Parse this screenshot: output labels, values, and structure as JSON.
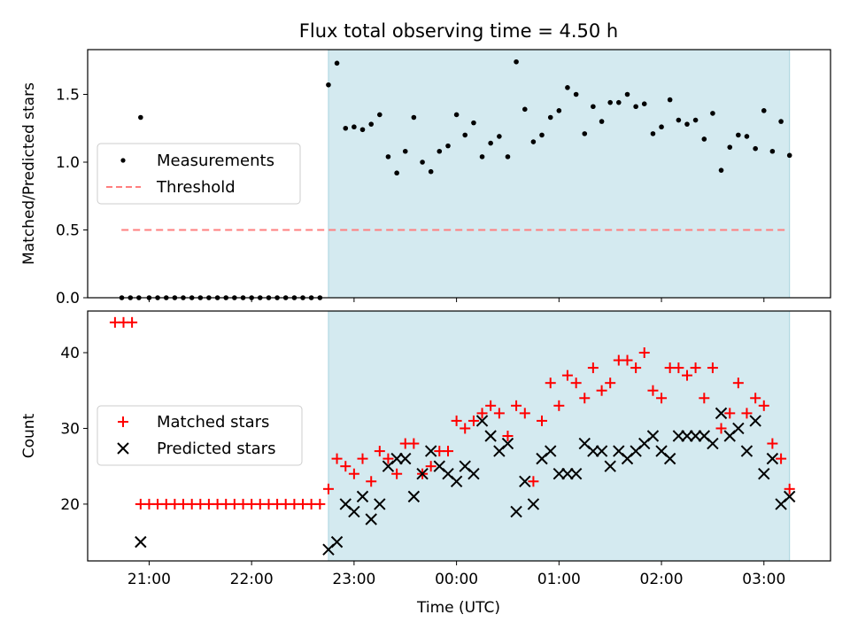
{
  "colors": {
    "shade": "#d4eaf0",
    "shade_edge": "#a9d3de",
    "measurements": "#000000",
    "threshold": "#ff7f7f",
    "matched": "#ff0000",
    "predicted": "#000000"
  },
  "chart_data": [
    {
      "type": "scatter",
      "title": "Flux total observing time = 4.50 h",
      "ylabel": "Matched/Predicted stars",
      "xlabel": "",
      "xlim": [
        20.4,
        27.65
      ],
      "ylim": [
        0,
        1.83
      ],
      "x_unit": "hours (UTC), values >= 24 are after midnight",
      "yticks": [
        0.0,
        0.5,
        1.0,
        1.5
      ],
      "ytick_labels": [
        "0.0",
        "0.5",
        "1.0",
        "1.5"
      ],
      "shaded_interval": [
        22.75,
        27.25
      ],
      "legend_position": "center-left",
      "series": [
        {
          "name": "Measurements",
          "marker": "dot",
          "x": [
            20.733,
            20.817,
            20.9,
            21.0,
            21.083,
            21.167,
            21.25,
            21.333,
            21.417,
            21.5,
            21.583,
            21.667,
            21.75,
            21.833,
            21.917,
            22.0,
            22.083,
            22.167,
            22.25,
            22.333,
            22.417,
            22.5,
            22.583,
            22.667,
            22.75,
            22.833,
            22.917,
            23.0,
            23.083,
            23.167,
            23.25,
            23.333,
            23.417,
            23.5,
            23.583,
            23.667,
            23.75,
            23.833,
            23.917,
            24.0,
            24.083,
            24.167,
            24.25,
            24.333,
            24.417,
            24.5,
            24.583,
            24.667,
            24.75,
            24.833,
            24.917,
            25.0,
            25.083,
            25.167,
            25.25,
            25.333,
            25.417,
            25.5,
            25.583,
            25.667,
            25.75,
            25.833,
            25.917,
            26.0,
            26.083,
            26.167,
            26.25,
            26.333,
            26.417,
            26.5,
            26.583,
            26.667,
            26.75,
            26.833,
            26.917,
            27.0,
            27.083,
            27.167,
            27.25
          ],
          "y": [
            0,
            0,
            0,
            0,
            0,
            0,
            0,
            0,
            0,
            0,
            0,
            0,
            0,
            0,
            0,
            0,
            0,
            0,
            0,
            0,
            0,
            0,
            0,
            0,
            1.57,
            1.73,
            1.25,
            1.26,
            1.24,
            1.28,
            1.35,
            1.04,
            0.92,
            1.08,
            1.33,
            1.0,
            0.93,
            1.08,
            1.12,
            1.35,
            1.2,
            1.29,
            1.04,
            1.14,
            1.19,
            1.04,
            1.74,
            1.39,
            1.15,
            1.2,
            1.33,
            1.38,
            1.55,
            1.5,
            1.21,
            1.41,
            1.3,
            1.44,
            1.44,
            1.5,
            1.41,
            1.43,
            1.21,
            1.26,
            1.46,
            1.31,
            1.28,
            1.31,
            1.17,
            1.36,
            0.94,
            1.11,
            1.2,
            1.19,
            1.1,
            1.38,
            1.08,
            1.3,
            1.05
          ],
          "extra_points": [
            {
              "x": 20.917,
              "y": 1.33
            }
          ]
        },
        {
          "name": "Threshold",
          "marker": "dashed-line",
          "x": [
            20.73,
            27.22
          ],
          "y": [
            0.5,
            0.5
          ]
        }
      ]
    },
    {
      "type": "scatter",
      "title": "",
      "ylabel": "Count",
      "xlabel": "Time (UTC)",
      "xlim": [
        20.4,
        27.65
      ],
      "ylim": [
        12.5,
        45.5
      ],
      "xticks": [
        21,
        22,
        23,
        24,
        25,
        26,
        27
      ],
      "xtick_labels": [
        "21:00",
        "22:00",
        "23:00",
        "00:00",
        "01:00",
        "02:00",
        "03:00"
      ],
      "yticks": [
        20,
        30,
        40
      ],
      "ytick_labels": [
        "20",
        "30",
        "40"
      ],
      "shaded_interval": [
        22.75,
        27.25
      ],
      "legend_position": "center-left",
      "series": [
        {
          "name": "Matched stars",
          "marker": "plus",
          "x": [
            20.667,
            20.75,
            20.833,
            20.917,
            21.0,
            21.083,
            21.167,
            21.25,
            21.333,
            21.417,
            21.5,
            21.583,
            21.667,
            21.75,
            21.833,
            21.917,
            22.0,
            22.083,
            22.167,
            22.25,
            22.333,
            22.417,
            22.5,
            22.583,
            22.667,
            22.75,
            22.833,
            22.917,
            23.0,
            23.083,
            23.167,
            23.25,
            23.333,
            23.417,
            23.5,
            23.583,
            23.667,
            23.75,
            23.833,
            23.917,
            24.0,
            24.083,
            24.167,
            24.25,
            24.333,
            24.417,
            24.5,
            24.583,
            24.667,
            24.75,
            24.833,
            24.917,
            25.0,
            25.083,
            25.167,
            25.25,
            25.333,
            25.417,
            25.5,
            25.583,
            25.667,
            25.75,
            25.833,
            25.917,
            26.0,
            26.083,
            26.167,
            26.25,
            26.333,
            26.417,
            26.5,
            26.583,
            26.667,
            26.75,
            26.833,
            26.917,
            27.0,
            27.083,
            27.167,
            27.25
          ],
          "y": [
            44,
            44,
            44,
            20,
            20,
            20,
            20,
            20,
            20,
            20,
            20,
            20,
            20,
            20,
            20,
            20,
            20,
            20,
            20,
            20,
            20,
            20,
            20,
            20,
            20,
            22,
            26,
            25,
            24,
            26,
            23,
            27,
            26,
            24,
            28,
            28,
            24,
            25,
            27,
            27,
            31,
            30,
            31,
            32,
            33,
            32,
            29,
            33,
            32,
            23,
            31,
            36,
            33,
            37,
            36,
            34,
            38,
            35,
            36,
            39,
            39,
            38,
            40,
            35,
            34,
            38,
            38,
            37,
            38,
            34,
            38,
            30,
            32,
            36,
            32,
            34,
            33,
            28,
            26,
            22
          ],
          "comment_first_three": "three points near 20.67-20.83 at 44"
        },
        {
          "name": "Predicted stars",
          "marker": "x",
          "x": [
            20.917,
            22.75,
            22.833,
            22.917,
            23.0,
            23.083,
            23.167,
            23.25,
            23.333,
            23.417,
            23.5,
            23.583,
            23.667,
            23.75,
            23.833,
            23.917,
            24.0,
            24.083,
            24.167,
            24.25,
            24.333,
            24.417,
            24.5,
            24.583,
            24.667,
            24.75,
            24.833,
            24.917,
            25.0,
            25.083,
            25.167,
            25.25,
            25.333,
            25.417,
            25.5,
            25.583,
            25.667,
            25.75,
            25.833,
            25.917,
            26.0,
            26.083,
            26.167,
            26.25,
            26.333,
            26.417,
            26.5,
            26.583,
            26.667,
            26.75,
            26.833,
            26.917,
            27.0,
            27.083,
            27.167,
            27.25
          ],
          "y": [
            15,
            14,
            15,
            20,
            19,
            21,
            18,
            20,
            25,
            26,
            26,
            21,
            24,
            27,
            25,
            24,
            23,
            25,
            24,
            31,
            29,
            27,
            28,
            19,
            23,
            20,
            26,
            27,
            24,
            24,
            24,
            28,
            27,
            27,
            25,
            27,
            26,
            27,
            28,
            29,
            27,
            26,
            29,
            29,
            29,
            29,
            28,
            32,
            29,
            30,
            27,
            31,
            24,
            26,
            20,
            21
          ]
        }
      ]
    }
  ]
}
